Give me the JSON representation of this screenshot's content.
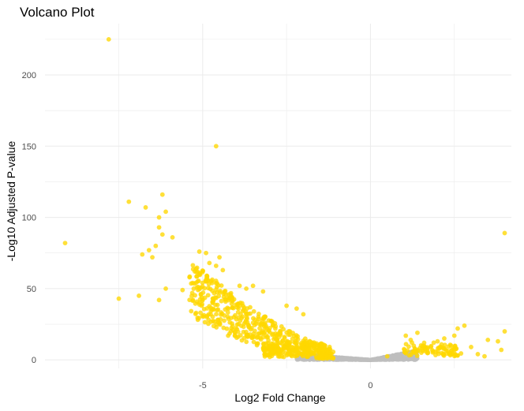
{
  "chart_data": {
    "type": "scatter",
    "title": "Volcano Plot",
    "xlabel": "Log2 Fold Change",
    "ylabel": "-Log10 Adjusted P-value",
    "xlim": [
      -9.7,
      4.2
    ],
    "ylim": [
      -6,
      236
    ],
    "xticks": [
      -5,
      0
    ],
    "yticks": [
      0,
      50,
      100,
      150,
      200
    ],
    "grid": true,
    "legend": "none",
    "colors": {
      "significant": "#FFD700",
      "not_significant": "#BEBEBE"
    },
    "series": [
      {
        "category": "significant",
        "points": [
          [
            -7.8,
            225
          ],
          [
            -4.6,
            150
          ],
          [
            -9.1,
            82
          ],
          [
            -7.2,
            111
          ],
          [
            -6.7,
            107
          ],
          [
            -6.2,
            116
          ],
          [
            -6.3,
            100
          ],
          [
            -6.1,
            104
          ],
          [
            -6.3,
            93
          ],
          [
            -6.2,
            88
          ],
          [
            -5.9,
            86
          ],
          [
            -6.4,
            80
          ],
          [
            -6.6,
            77
          ],
          [
            -6.8,
            74
          ],
          [
            -6.5,
            72
          ],
          [
            -5.1,
            76
          ],
          [
            -4.9,
            75
          ],
          [
            -5.2,
            64
          ],
          [
            -4.5,
            72
          ],
          [
            -4.8,
            68
          ],
          [
            -4.6,
            66
          ],
          [
            -4.4,
            63
          ],
          [
            -5.1,
            60
          ],
          [
            -4.9,
            55
          ],
          [
            -5.3,
            54
          ],
          [
            -5.6,
            49
          ],
          [
            -6.1,
            50
          ],
          [
            -7.5,
            43
          ],
          [
            -6.9,
            45
          ],
          [
            -6.3,
            42
          ],
          [
            -3.9,
            52
          ],
          [
            -3.7,
            50
          ],
          [
            -3.5,
            52
          ],
          [
            -3.2,
            48
          ],
          [
            -2.5,
            38
          ],
          [
            -2.2,
            36
          ],
          [
            -2.0,
            32
          ],
          [
            0.5,
            2.5
          ],
          [
            1.2,
            14
          ],
          [
            1.4,
            19
          ],
          [
            1.6,
            12
          ],
          [
            1.8,
            9
          ],
          [
            2.0,
            13
          ],
          [
            2.2,
            15
          ],
          [
            2.5,
            17
          ],
          [
            2.6,
            22
          ],
          [
            2.8,
            24
          ],
          [
            2.4,
            10
          ],
          [
            3.0,
            9
          ],
          [
            2.7,
            4.5
          ],
          [
            3.2,
            4
          ],
          [
            3.5,
            14
          ],
          [
            3.8,
            13
          ],
          [
            3.4,
            2.5
          ],
          [
            3.9,
            7
          ],
          [
            4.0,
            20
          ],
          [
            4.0,
            89
          ]
        ]
      },
      {
        "category": "not_significant",
        "points": []
      }
    ]
  }
}
